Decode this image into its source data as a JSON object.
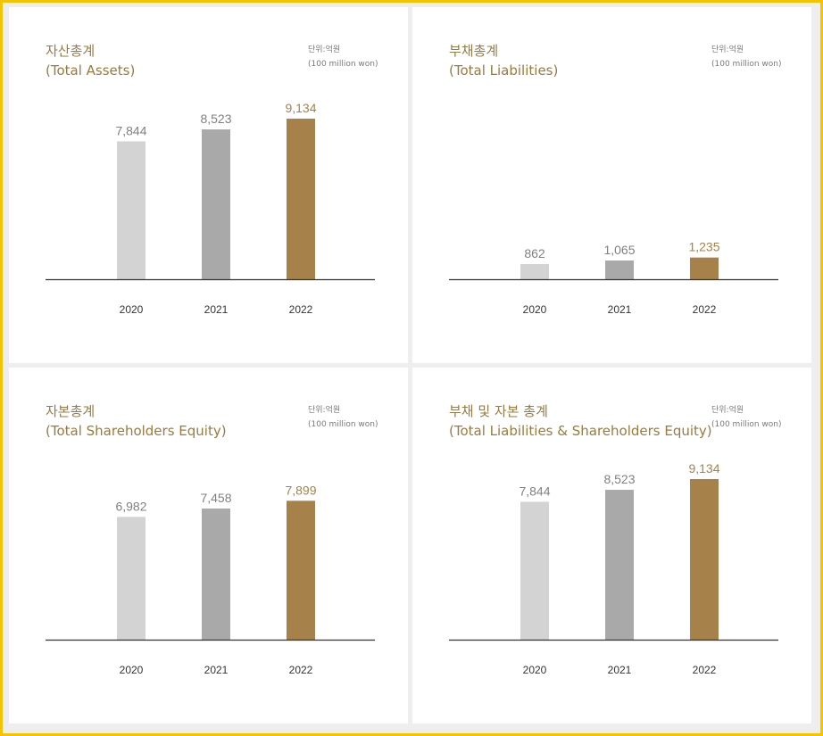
{
  "unit_label": {
    "ko": "단위:억원",
    "en": "(100 million won)"
  },
  "colors": {
    "c2020": "#d3d3d3",
    "c2021": "#a9a9a9",
    "c2022": "#a6824a",
    "title": "#9a7a3e",
    "axis": "#333333",
    "frame": "#f5c400"
  },
  "chart_data": [
    {
      "type": "bar",
      "title": "자산총계",
      "subtitle": "(Total Assets)",
      "categories": [
        "2020",
        "2021",
        "2022"
      ],
      "values": [
        7844,
        8523,
        9134
      ],
      "labels": [
        "7,844",
        "8,523",
        "9,134"
      ],
      "ylim": [
        0,
        9134
      ]
    },
    {
      "type": "bar",
      "title": "부채총계",
      "subtitle": "(Total Liabilities)",
      "categories": [
        "2020",
        "2021",
        "2022"
      ],
      "values": [
        862,
        1065,
        1235
      ],
      "labels": [
        "862",
        "1,065",
        "1,235"
      ],
      "ylim": [
        0,
        9134
      ]
    },
    {
      "type": "bar",
      "title": "자본총계",
      "subtitle": "(Total Shareholders Equity)",
      "categories": [
        "2020",
        "2021",
        "2022"
      ],
      "values": [
        6982,
        7458,
        7899
      ],
      "labels": [
        "6,982",
        "7,458",
        "7,899"
      ],
      "ylim": [
        0,
        9134
      ]
    },
    {
      "type": "bar",
      "title": "부채 및 자본 총계",
      "subtitle": "(Total Liabilities & Shareholders Equity)",
      "categories": [
        "2020",
        "2021",
        "2022"
      ],
      "values": [
        7844,
        8523,
        9134
      ],
      "labels": [
        "7,844",
        "8,523",
        "9,134"
      ],
      "ylim": [
        0,
        9134
      ]
    }
  ]
}
